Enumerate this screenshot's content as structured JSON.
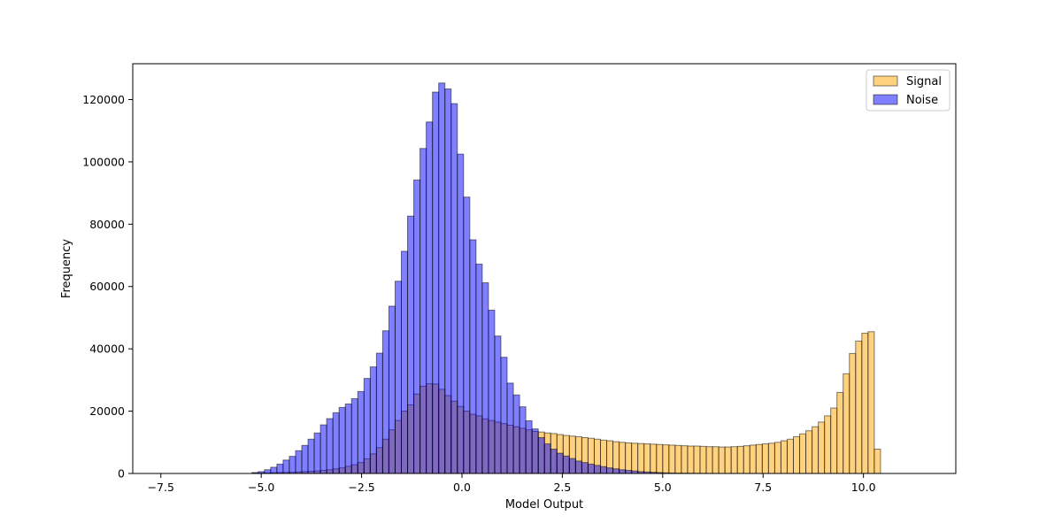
{
  "chart_data": {
    "type": "histogram",
    "title": "",
    "xlabel": "Model Output",
    "ylabel": "Frequency",
    "xlim": [
      -8.2,
      12.3
    ],
    "ylim": [
      0,
      131500
    ],
    "grid": false,
    "legend_position": "top-right",
    "xticks": [
      -7.5,
      -5.0,
      -2.5,
      0.0,
      2.5,
      5.0,
      7.5,
      10.0
    ],
    "xtick_labels": [
      "−7.5",
      "−5.0",
      "−2.5",
      "0.0",
      "2.5",
      "5.0",
      "7.5",
      "10.0"
    ],
    "yticks": [
      0,
      20000,
      40000,
      60000,
      80000,
      100000,
      120000
    ],
    "ytick_labels": [
      "0",
      "20000",
      "40000",
      "60000",
      "80000",
      "100000",
      "120000"
    ],
    "series": [
      {
        "name": "Signal",
        "color": "#FFA500",
        "opacity": 0.5,
        "edge_color": "#000000",
        "bin_start": -7.4,
        "bin_width": 0.155,
        "values": [
          0,
          0,
          0,
          0,
          0,
          0,
          0,
          0,
          0,
          0,
          0,
          0,
          0,
          0,
          100,
          150,
          200,
          250,
          300,
          350,
          400,
          500,
          600,
          700,
          800,
          1000,
          1200,
          1500,
          1800,
          2300,
          2800,
          3500,
          4700,
          6300,
          8300,
          11000,
          14000,
          17000,
          20000,
          22000,
          25500,
          28000,
          28800,
          28700,
          27000,
          25000,
          23200,
          21500,
          20000,
          19000,
          18500,
          17500,
          17000,
          16500,
          16000,
          15500,
          15000,
          14500,
          14000,
          13500,
          13300,
          13000,
          12800,
          12500,
          12200,
          12000,
          11800,
          11500,
          11300,
          11000,
          10700,
          10500,
          10200,
          10000,
          9800,
          9700,
          9600,
          9500,
          9400,
          9300,
          9200,
          9100,
          9000,
          8900,
          8800,
          8800,
          8700,
          8600,
          8600,
          8500,
          8500,
          8600,
          8700,
          8900,
          9100,
          9300,
          9500,
          9700,
          10000,
          10500,
          11000,
          11800,
          12700,
          13700,
          15000,
          16500,
          18500,
          21000,
          26000,
          32000,
          38500,
          42500,
          45000,
          45500,
          7800
        ]
      },
      {
        "name": "Noise",
        "color": "#0000FF",
        "opacity": 0.5,
        "edge_color": "#000000",
        "bin_start": -7.4,
        "bin_width": 0.155,
        "values": [
          0,
          0,
          0,
          0,
          0,
          0,
          0,
          0,
          0,
          0,
          0,
          0,
          0,
          0,
          300,
          600,
          1200,
          2000,
          3000,
          4300,
          5500,
          7300,
          9000,
          11000,
          13000,
          15600,
          17600,
          19500,
          21200,
          22300,
          24000,
          26300,
          30500,
          34200,
          38600,
          45800,
          53700,
          61700,
          71300,
          82600,
          94200,
          104300,
          112800,
          122400,
          125300,
          123400,
          118700,
          102500,
          88700,
          75000,
          67200,
          61200,
          52400,
          44100,
          37300,
          29000,
          25200,
          21400,
          16900,
          14300,
          11500,
          9500,
          7800,
          6500,
          5600,
          4800,
          4000,
          3500,
          3000,
          2600,
          2200,
          1800,
          1500,
          1200,
          1000,
          800,
          600,
          500,
          400,
          300,
          200,
          150,
          100,
          80,
          60,
          40,
          30,
          20,
          10,
          0,
          0,
          0,
          0,
          0,
          0,
          0,
          0,
          0,
          0,
          0,
          0,
          0,
          0,
          0,
          0,
          0,
          0,
          0,
          0,
          0,
          0,
          0,
          0,
          0,
          0,
          0,
          0,
          0,
          0
        ]
      }
    ]
  }
}
